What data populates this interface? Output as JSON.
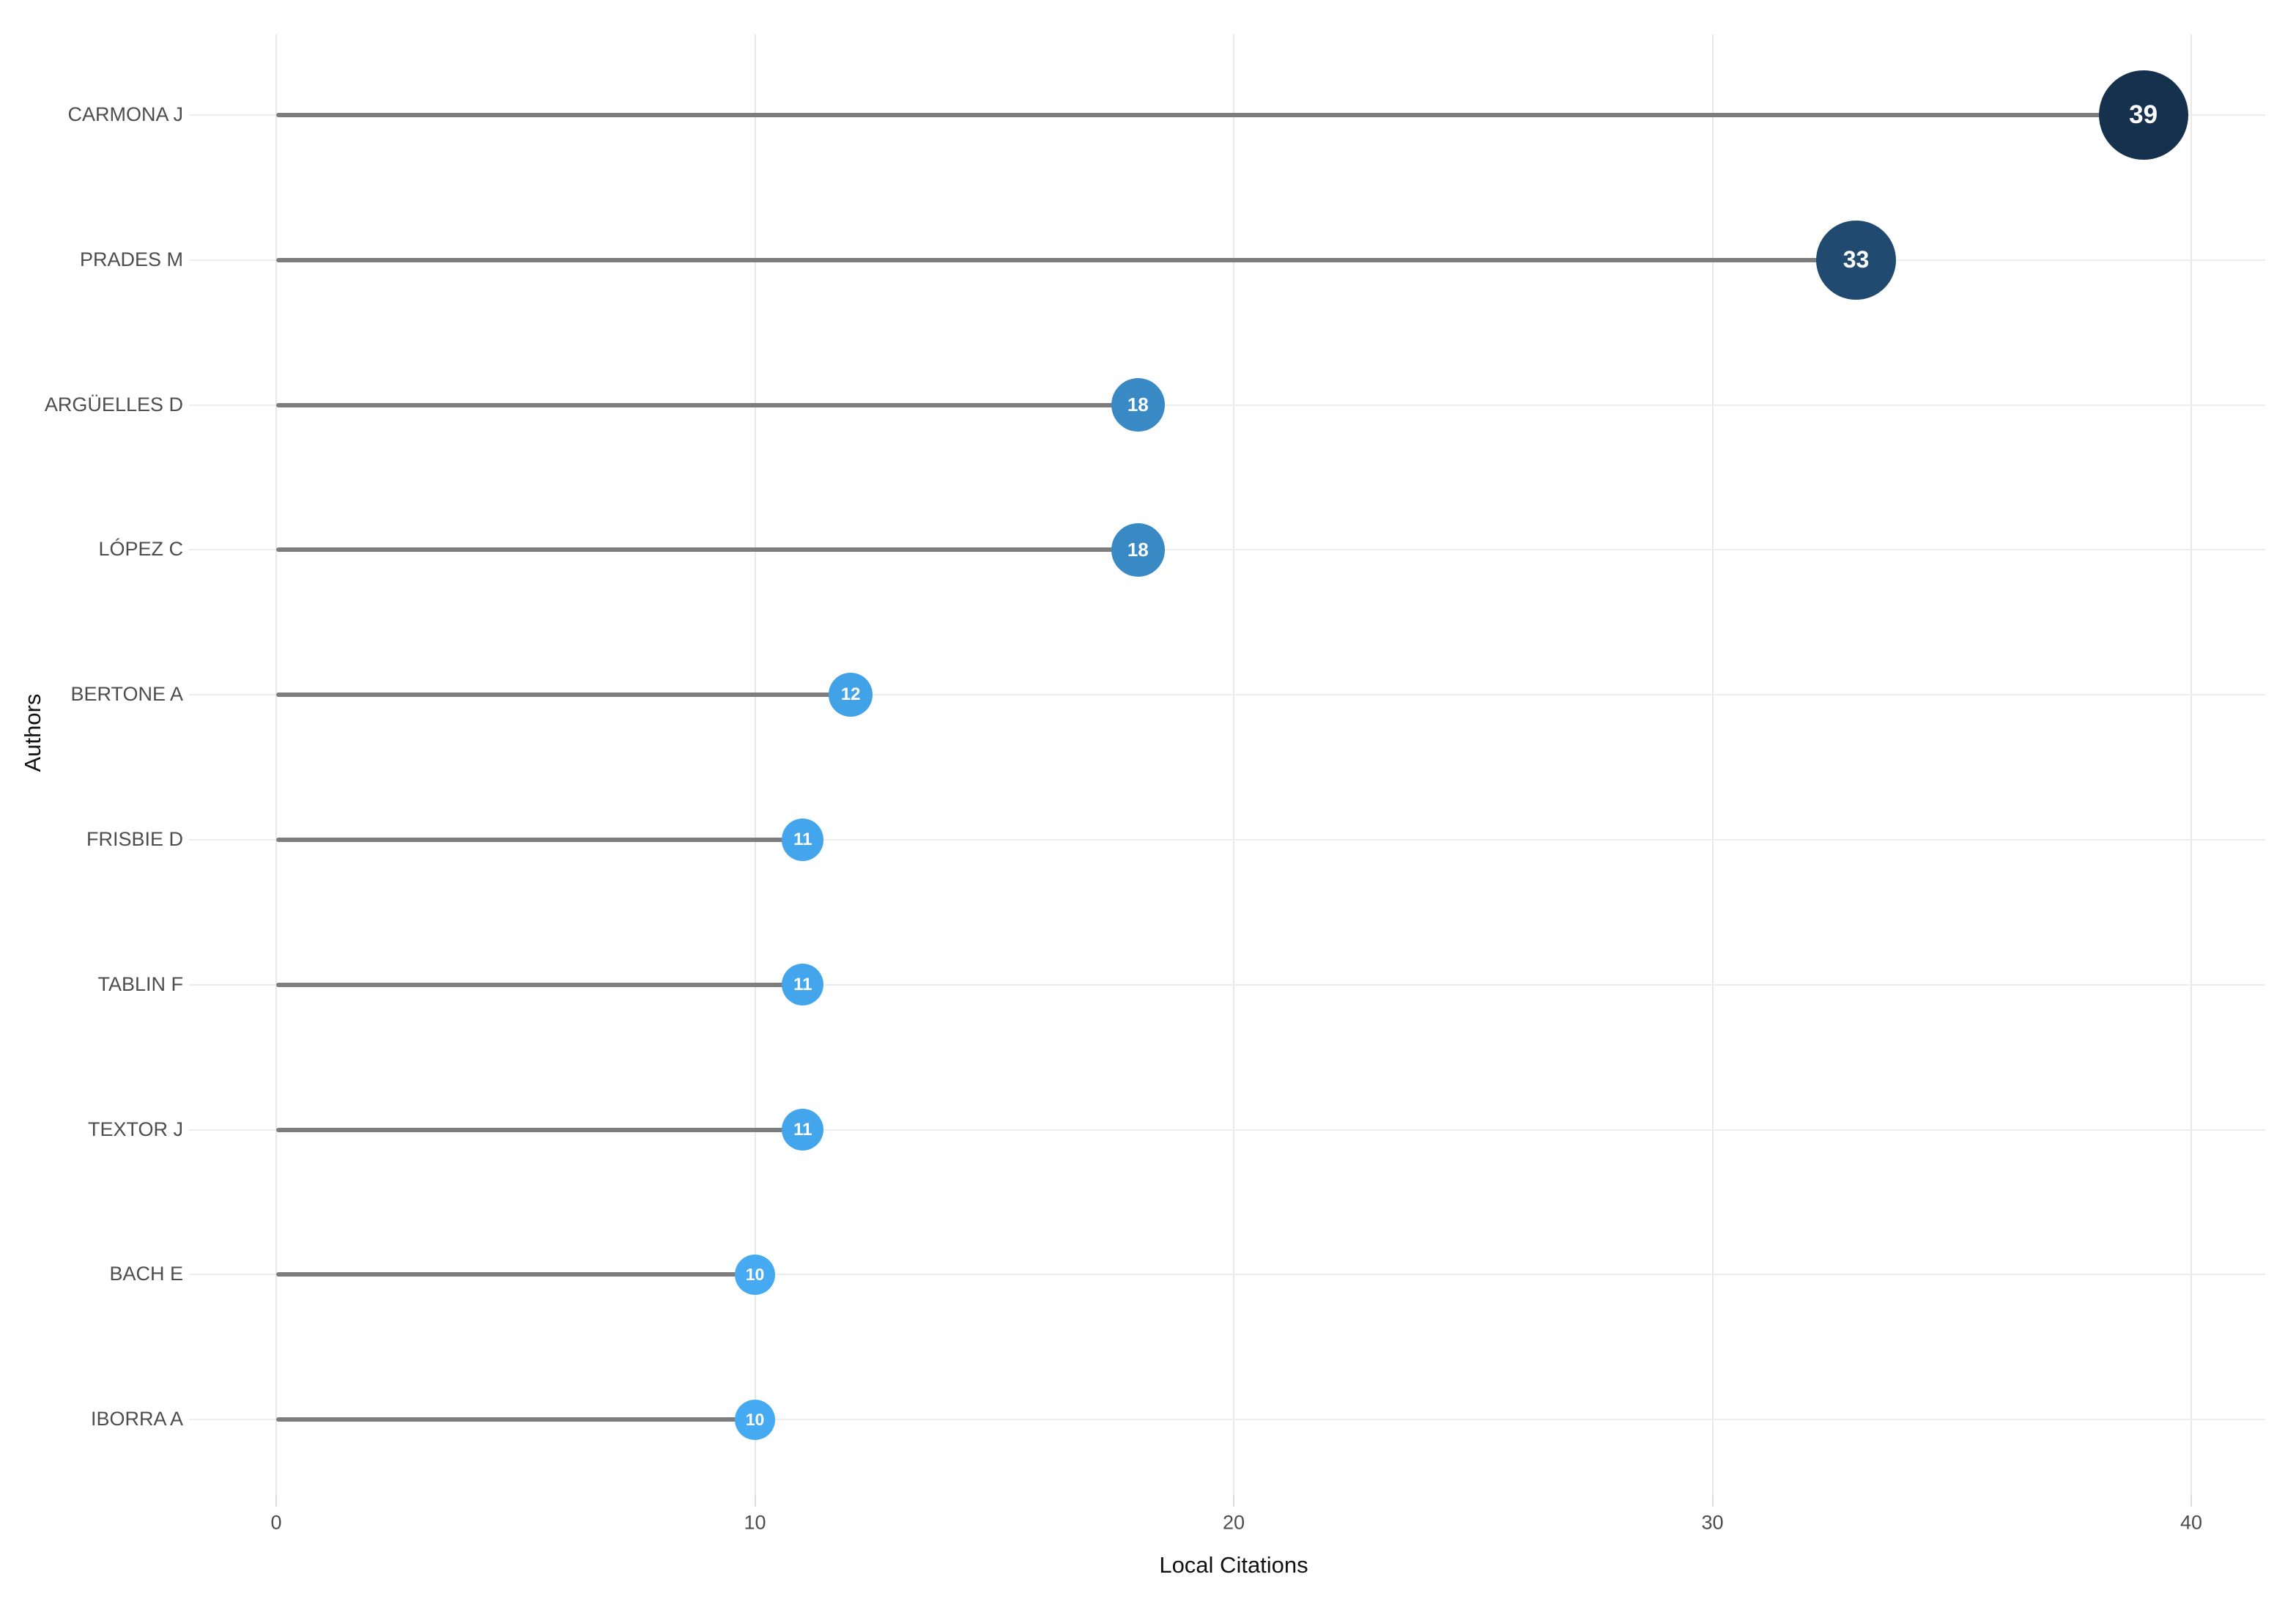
{
  "chart_data": {
    "type": "scatter",
    "subtype": "lollipop-horizontal",
    "title": "",
    "categories": [
      "CARMONA J",
      "PRADES M",
      "ARGÜELLES D",
      "LÓPEZ C",
      "BERTONE A",
      "FRISBIE D",
      "TABLIN F",
      "TEXTOR J",
      "BACH E",
      "IBORRA A"
    ],
    "values": [
      39,
      33,
      18,
      18,
      12,
      11,
      11,
      11,
      10,
      10
    ],
    "xlabel": "Local Citations",
    "ylabel": "Authors",
    "xlim": [
      0,
      40
    ],
    "xticks": [
      0,
      10,
      20,
      30,
      40
    ],
    "grid": true,
    "legend": false,
    "marker": {
      "size_encoding": "value",
      "color_encoding": "value",
      "min_value": 10,
      "max_value": 39
    }
  },
  "axes": {
    "x_title": "Local Citations",
    "y_title": "Authors",
    "x_tick_labels": [
      "0",
      "10",
      "20",
      "30",
      "40"
    ]
  },
  "items": [
    {
      "label": "CARMONA J",
      "value": 39
    },
    {
      "label": "PRADES M",
      "value": 33
    },
    {
      "label": "ARGÜELLES D",
      "value": 18
    },
    {
      "label": "LÓPEZ C",
      "value": 18
    },
    {
      "label": "BERTONE A",
      "value": 12
    },
    {
      "label": "FRISBIE D",
      "value": 11
    },
    {
      "label": "TABLIN F",
      "value": 11
    },
    {
      "label": "TEXTOR J",
      "value": 11
    },
    {
      "label": "BACH E",
      "value": 10
    },
    {
      "label": "IBORRA A",
      "value": 10
    }
  ],
  "colors": {
    "background": "#ffffff",
    "bubble_low": "#45aaf2",
    "bubble_high": "#16314d",
    "bubble_text": "#ffffff",
    "stem": "#7d7d7d",
    "gridline": "#ededed",
    "tick_text": "#4d4d4d",
    "axis_title_text": "#111111"
  }
}
